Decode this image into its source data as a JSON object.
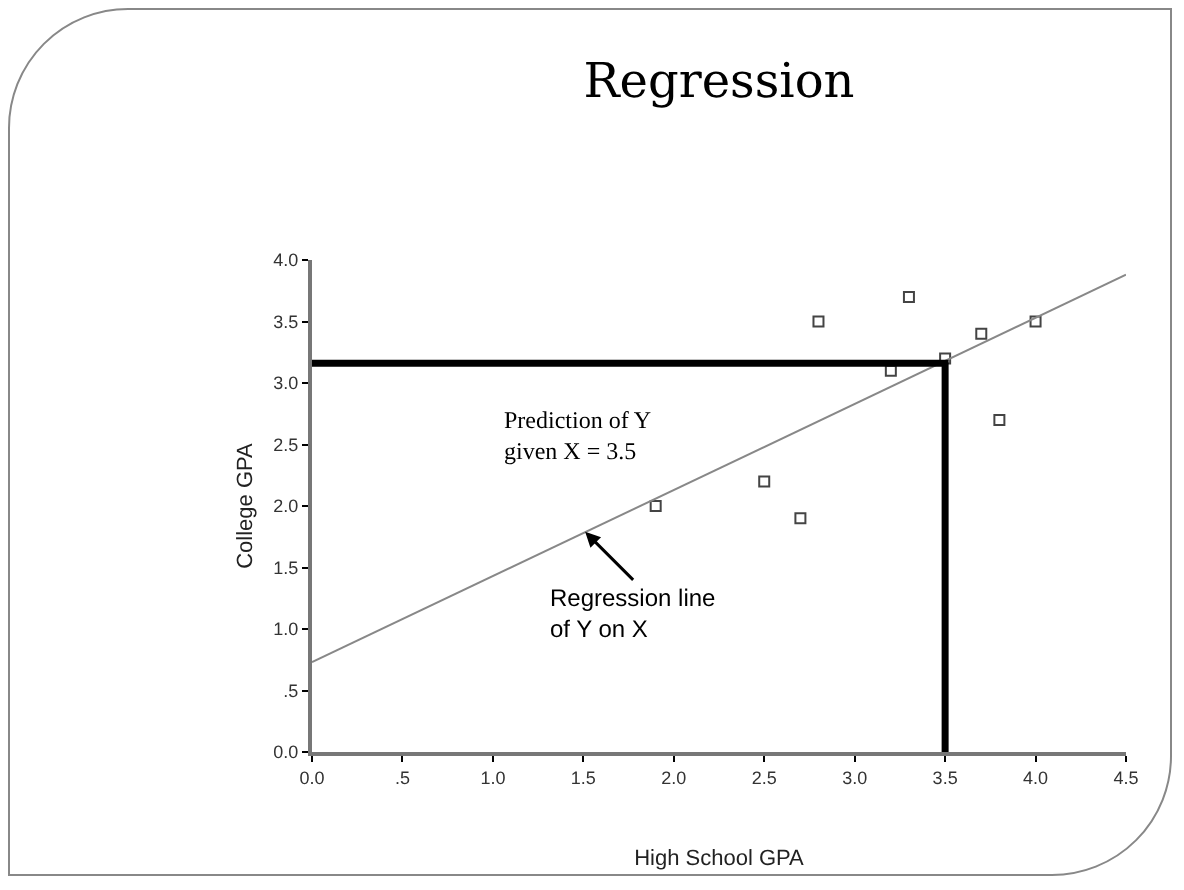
{
  "chart_data": {
    "type": "scatter",
    "title": "Regression",
    "xlabel": "High School GPA",
    "ylabel": "College GPA",
    "xlim": [
      0,
      4.5
    ],
    "ylim": [
      0,
      4
    ],
    "xticks": [
      {
        "value": 0,
        "label": "0.0"
      },
      {
        "value": 0.5,
        "label": ".5"
      },
      {
        "value": 1,
        "label": "1.0"
      },
      {
        "value": 1.5,
        "label": "1.5"
      },
      {
        "value": 2,
        "label": "2.0"
      },
      {
        "value": 2.5,
        "label": "2.5"
      },
      {
        "value": 3,
        "label": "3.0"
      },
      {
        "value": 3.5,
        "label": "3.5"
      },
      {
        "value": 4,
        "label": "4.0"
      },
      {
        "value": 4.5,
        "label": "4.5"
      }
    ],
    "yticks": [
      {
        "value": 0,
        "label": "0.0"
      },
      {
        "value": 0.5,
        "label": ".5"
      },
      {
        "value": 1,
        "label": "1.0"
      },
      {
        "value": 1.5,
        "label": "1.5"
      },
      {
        "value": 2,
        "label": "2.0"
      },
      {
        "value": 2.5,
        "label": "2.5"
      },
      {
        "value": 3,
        "label": "3.0"
      },
      {
        "value": 3.5,
        "label": "3.5"
      },
      {
        "value": 4,
        "label": "4.0"
      }
    ],
    "grid": false,
    "series": [
      {
        "type": "scatter",
        "marker": "square",
        "color": "#444444",
        "x": [
          1.9,
          2.5,
          2.7,
          2.8,
          3.2,
          3.3,
          3.5,
          3.7,
          3.8,
          4.0
        ],
        "values": [
          2.0,
          2.2,
          1.9,
          3.5,
          3.1,
          3.7,
          3.2,
          3.4,
          2.7,
          3.5
        ]
      },
      {
        "type": "line",
        "color": "#888888",
        "marker": "none",
        "line_style": "solid",
        "x": [
          0,
          4.5
        ],
        "values": [
          0.73,
          3.88
        ]
      },
      {
        "type": "line",
        "color": "#000000",
        "marker": "none",
        "line_style": "solid",
        "x": [
          0,
          3.5,
          3.5
        ],
        "values": [
          3.16,
          3.16,
          0
        ]
      }
    ],
    "annotations": [
      "Prediction of Y\ngiven X = 3.5",
      {
        "text": "Regression line\nof Y on X",
        "x": 1.51,
        "y": 1.79
      }
    ]
  }
}
